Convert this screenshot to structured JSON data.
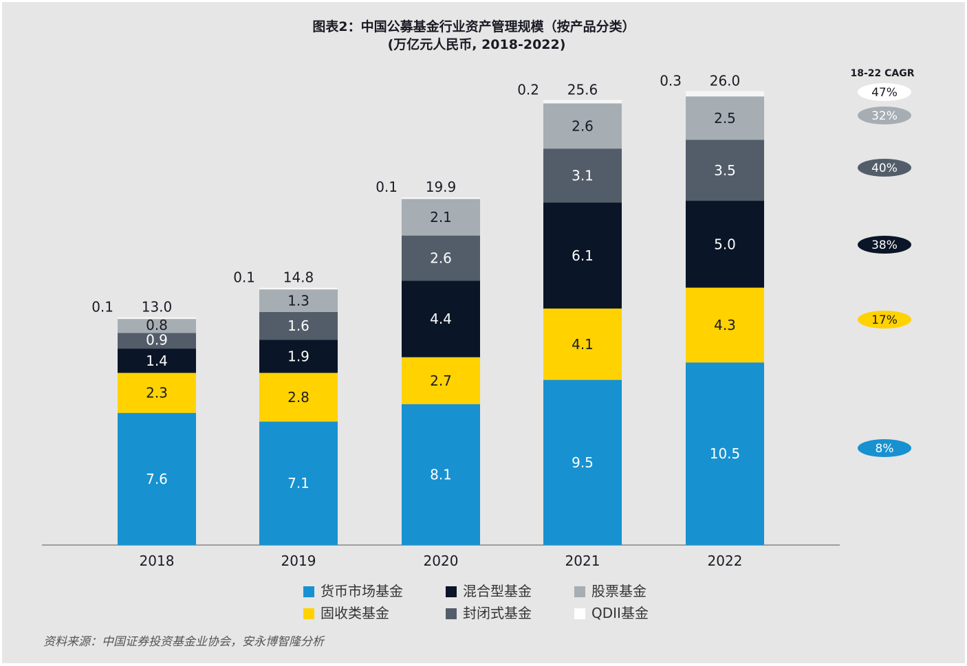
{
  "chart_data": {
    "type": "bar",
    "stacked": true,
    "title": "图表2：中国公募基金行业资产管理规模（按产品分类）",
    "subtitle": "(万亿元人民币, 2018-2022)",
    "categories": [
      "2018",
      "2019",
      "2020",
      "2021",
      "2022"
    ],
    "series": [
      {
        "name": "货币市场基金",
        "color": "#1891d0",
        "label_color": "#ffffff",
        "values": [
          7.6,
          7.1,
          8.1,
          9.5,
          10.5
        ]
      },
      {
        "name": "固收类基金",
        "color": "#ffd200",
        "label_color": "#1a1a24",
        "values": [
          2.3,
          2.8,
          2.7,
          4.1,
          4.3
        ]
      },
      {
        "name": "混合型基金",
        "color": "#0a1627",
        "label_color": "#ffffff",
        "values": [
          1.4,
          1.9,
          4.4,
          6.1,
          5.0
        ]
      },
      {
        "name": "封闭式基金",
        "color": "#535d6a",
        "label_color": "#ffffff",
        "values": [
          0.9,
          1.6,
          2.6,
          3.1,
          3.5
        ]
      },
      {
        "name": "股票基金",
        "color": "#a6adb3",
        "label_color": "#1a1a24",
        "values": [
          0.8,
          1.3,
          2.1,
          2.6,
          2.5
        ]
      },
      {
        "name": "QDII基金",
        "color": "#f6f6f6",
        "label_color": "#1a1a24",
        "values": [
          0.1,
          0.1,
          0.1,
          0.2,
          0.3
        ]
      }
    ],
    "totals": [
      13.0,
      14.8,
      19.9,
      25.6,
      26.0
    ],
    "cagr": {
      "header": "18-22 CAGR",
      "values": [
        "47%",
        "32%",
        "40%",
        "38%",
        "17%",
        "8%"
      ]
    },
    "legend_order": [
      "货币市场基金",
      "混合型基金",
      "股票基金",
      "固收类基金",
      "封闭式基金",
      "QDII基金"
    ],
    "legend_position": "bottom",
    "grid": false
  },
  "source": "资料来源：中国证券投资基金业协会，安永博智隆分析"
}
